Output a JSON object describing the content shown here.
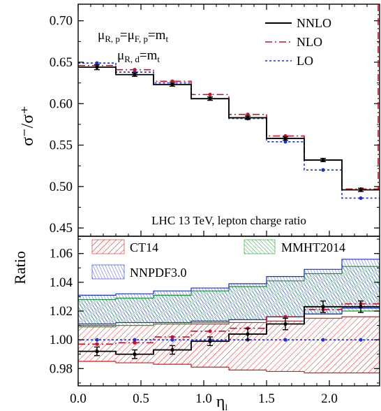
{
  "chart_data": [
    {
      "type": "line",
      "panel": "top",
      "xlabel_main": "η",
      "xlabel_sub": "l",
      "ylabel": "σ⁻/σ⁺",
      "xlim": [
        0.0,
        2.4
      ],
      "ylim": [
        0.44,
        0.72
      ],
      "yticks": [
        0.45,
        0.5,
        0.55,
        0.6,
        0.65,
        0.7
      ],
      "ytick_labels": [
        "0.45",
        "0.50",
        "0.55",
        "0.60",
        "0.65",
        "0.70"
      ],
      "bin_edges": [
        0.0,
        0.3,
        0.6,
        0.9,
        1.2,
        1.5,
        1.8,
        2.1,
        2.4
      ],
      "x": [
        0.15,
        0.45,
        0.75,
        1.05,
        1.35,
        1.65,
        1.95,
        2.25
      ],
      "series": [
        {
          "name": "NNLO",
          "color": "#000000",
          "style": "solid",
          "values": [
            0.644,
            0.635,
            0.623,
            0.606,
            0.583,
            0.558,
            0.532,
            0.496
          ],
          "errors": [
            0.003,
            0.002,
            0.002,
            0.002,
            0.002,
            0.002,
            0.002,
            0.002
          ]
        },
        {
          "name": "NLO",
          "color": "#c8102e",
          "style": "dashdot",
          "values": [
            0.646,
            0.641,
            0.627,
            0.611,
            0.587,
            0.561,
            0.532,
            0.497
          ]
        },
        {
          "name": "LO",
          "color": "#1f2fd6",
          "style": "dotted",
          "values": [
            0.649,
            0.638,
            0.625,
            0.606,
            0.582,
            0.554,
            0.52,
            0.486
          ]
        }
      ],
      "annotations": {
        "scale_line1": {
          "a": "μ",
          "a_sub": "R, p",
          "b": "=μ",
          "b_sub": "F, p",
          "c": "=m",
          "c_sub": "t"
        },
        "scale_line2": {
          "a": "μ",
          "a_sub": "R, d",
          "c": "=m",
          "c_sub": "t"
        },
        "process": "LHC 13 TeV, lepton charge ratio"
      },
      "legend_position": "top-right"
    },
    {
      "type": "area",
      "panel": "bottom",
      "ylabel": "Ratio",
      "xlim": [
        0.0,
        2.4
      ],
      "ylim": [
        0.968,
        1.072
      ],
      "yticks": [
        0.98,
        1.0,
        1.02,
        1.04,
        1.06
      ],
      "ytick_labels": [
        "0.98",
        "1.00",
        "1.02",
        "1.04",
        "1.06"
      ],
      "xticks": [
        0.0,
        0.5,
        1.0,
        1.5,
        2.0
      ],
      "xtick_labels": [
        "0.0",
        "0.5",
        "1.0",
        "1.5",
        "2.0"
      ],
      "bin_edges": [
        0.0,
        0.3,
        0.6,
        0.9,
        1.2,
        1.5,
        1.8,
        2.1,
        2.4
      ],
      "x": [
        0.15,
        0.45,
        0.75,
        1.05,
        1.35,
        1.65,
        1.95,
        2.25
      ],
      "bands": [
        {
          "name": "CT14",
          "color": "#d21f1f",
          "lower": [
            0.985,
            0.984,
            0.983,
            0.981,
            0.979,
            0.978,
            0.977,
            0.977
          ],
          "upper": [
            1.01,
            1.01,
            1.011,
            1.011,
            1.012,
            1.013,
            1.015,
            1.016
          ]
        },
        {
          "name": "MMHT2014",
          "color": "#1a9b2a",
          "lower": [
            1.009,
            1.01,
            1.011,
            1.012,
            1.014,
            1.016,
            1.018,
            1.02
          ],
          "upper": [
            1.028,
            1.029,
            1.031,
            1.034,
            1.037,
            1.041,
            1.046,
            1.051
          ]
        },
        {
          "name": "NNPDF3.0",
          "color": "#1f2fd6",
          "lower": [
            1.011,
            1.012,
            1.012,
            1.013,
            1.014,
            1.016,
            1.018,
            1.022
          ],
          "upper": [
            1.031,
            1.032,
            1.034,
            1.036,
            1.039,
            1.044,
            1.049,
            1.056
          ]
        }
      ],
      "series": [
        {
          "name": "NNLO",
          "color": "#000000",
          "style": "solid",
          "values": [
            0.992,
            0.99,
            0.993,
            0.999,
            1.004,
            1.011,
            1.023,
            1.023
          ],
          "errors": [
            0.003,
            0.003,
            0.003,
            0.003,
            0.004,
            0.004,
            0.004,
            0.004
          ]
        },
        {
          "name": "NLO",
          "color": "#c8102e",
          "style": "dashdot",
          "values": [
            0.997,
            0.998,
            1.002,
            1.006,
            1.008,
            1.016,
            1.021,
            1.025
          ]
        },
        {
          "name": "LO",
          "color": "#1f2fd6",
          "style": "dotted",
          "values": [
            1.0,
            1.0,
            1.0,
            1.0,
            1.0,
            1.0,
            1.0,
            1.0
          ]
        }
      ],
      "legend_position": "top"
    }
  ]
}
